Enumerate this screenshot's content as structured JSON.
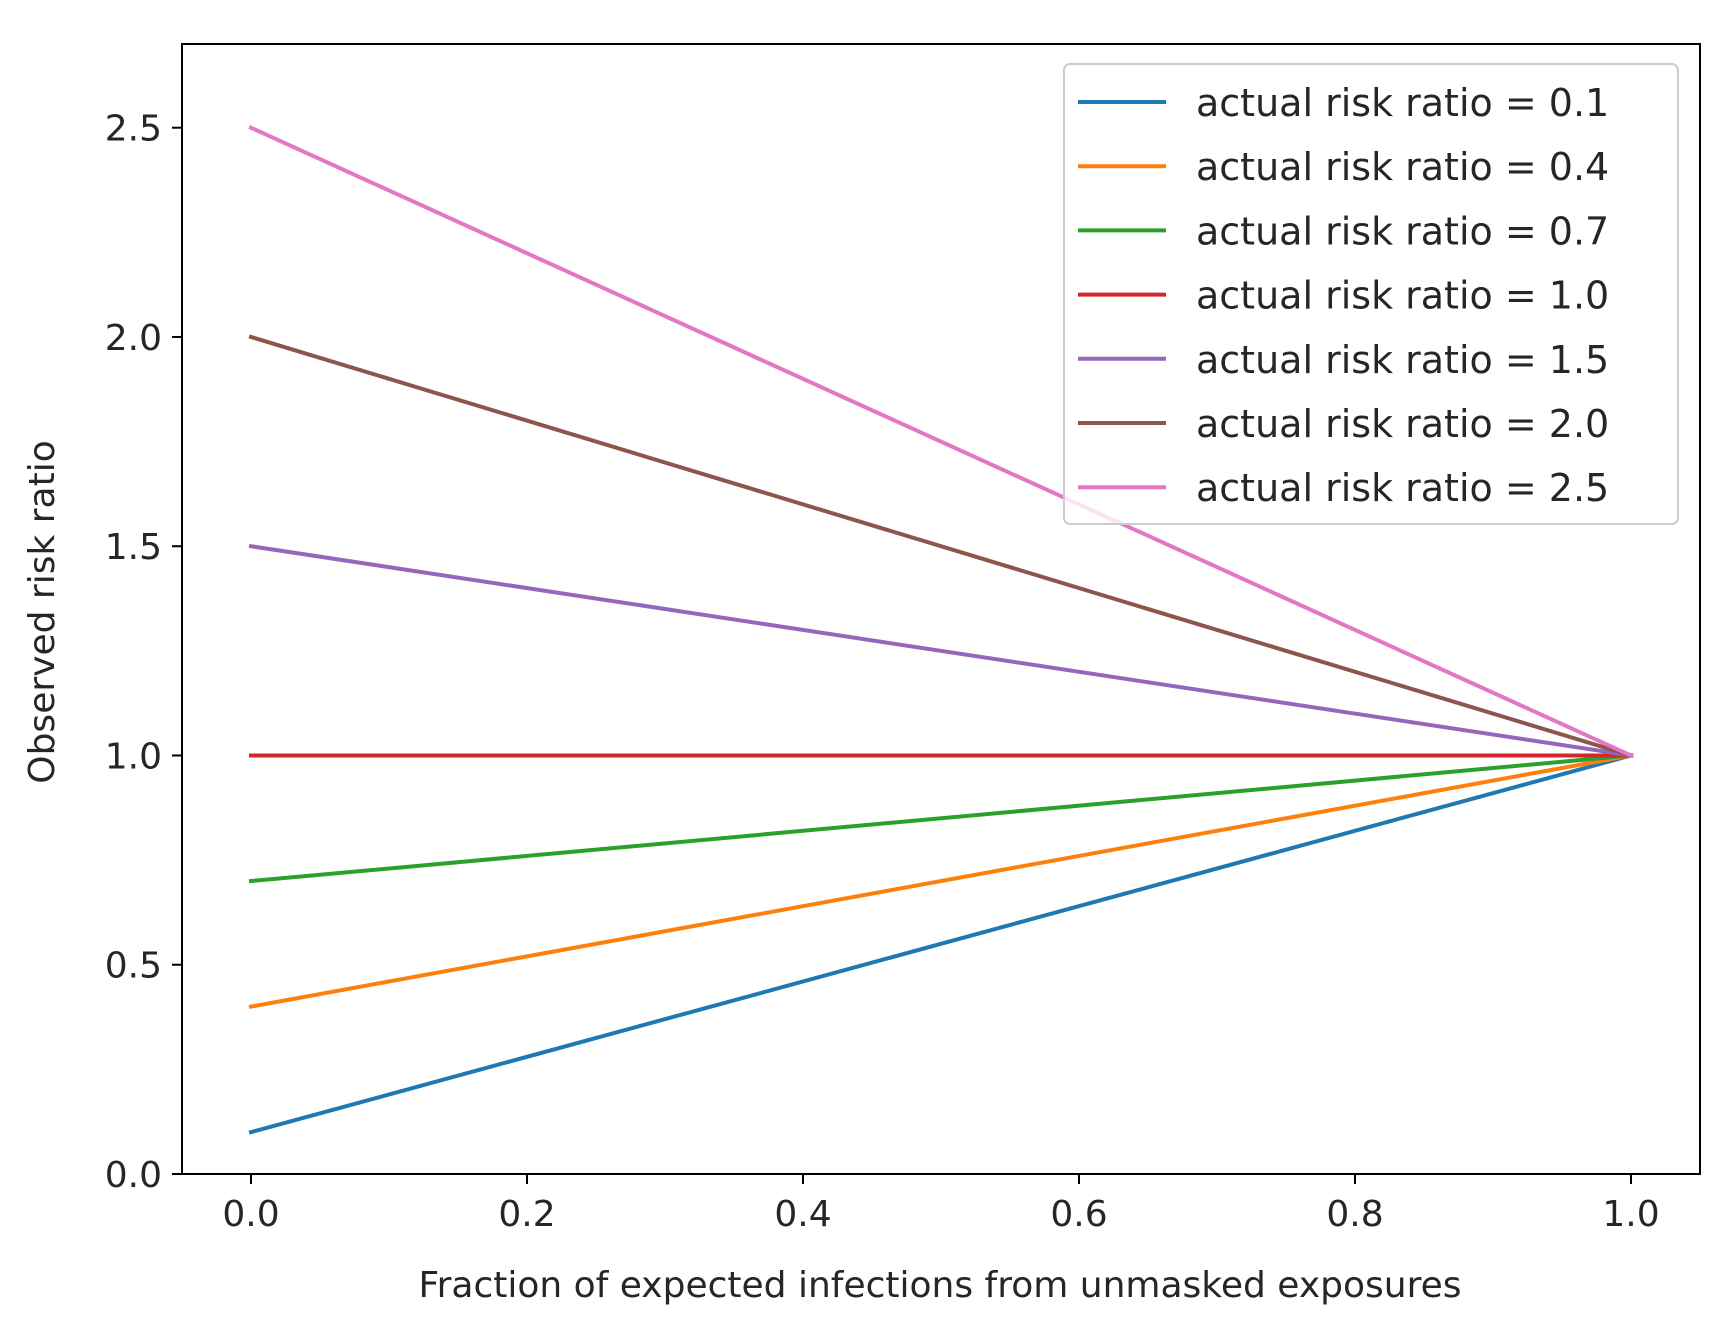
{
  "chart_data": {
    "type": "line",
    "title": "",
    "xlabel": "Fraction of expected infections from unmasked exposures",
    "ylabel": "Observed risk ratio",
    "xlim": [
      -0.05,
      1.05
    ],
    "ylim": [
      0.0,
      2.7
    ],
    "xticks": [
      0.0,
      0.2,
      0.4,
      0.6,
      0.8,
      1.0
    ],
    "xtick_labels": [
      "0.0",
      "0.2",
      "0.4",
      "0.6",
      "0.8",
      "1.0"
    ],
    "yticks": [
      0.0,
      0.5,
      1.0,
      1.5,
      2.0,
      2.5
    ],
    "ytick_labels": [
      "0.0",
      "0.5",
      "1.0",
      "1.5",
      "2.0",
      "2.5"
    ],
    "grid": false,
    "legend_position": "top-right",
    "x": [
      0.0,
      1.0
    ],
    "series": [
      {
        "name": "actual risk ratio = 0.1",
        "color": "#1f77b4",
        "values": [
          0.1,
          1.0
        ]
      },
      {
        "name": "actual risk ratio = 0.4",
        "color": "#ff7f0e",
        "values": [
          0.4,
          1.0
        ]
      },
      {
        "name": "actual risk ratio = 0.7",
        "color": "#2ca02c",
        "values": [
          0.7,
          1.0
        ]
      },
      {
        "name": "actual risk ratio = 1.0",
        "color": "#d62728",
        "values": [
          1.0,
          1.0
        ]
      },
      {
        "name": "actual risk ratio = 1.5",
        "color": "#9467bd",
        "values": [
          1.5,
          1.0
        ]
      },
      {
        "name": "actual risk ratio = 2.0",
        "color": "#8c564b",
        "values": [
          2.0,
          1.0
        ]
      },
      {
        "name": "actual risk ratio = 2.5",
        "color": "#e377c2",
        "values": [
          2.5,
          1.0
        ]
      }
    ]
  }
}
